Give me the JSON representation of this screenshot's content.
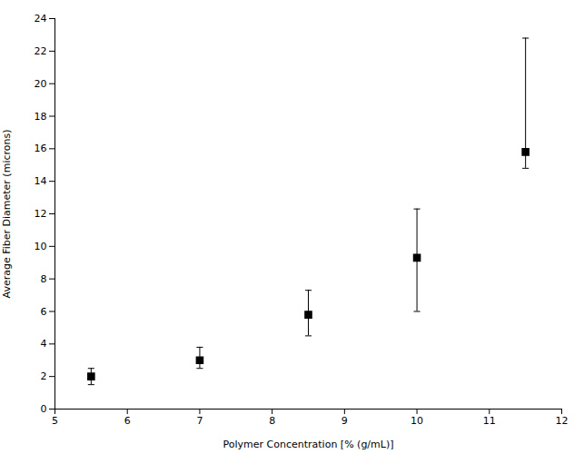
{
  "chart_data": {
    "type": "scatter",
    "xlabel": "Polymer Concentration [% (g/mL)]",
    "ylabel": "Average Fiber Diameter (microns)",
    "x": [
      5.5,
      7.0,
      8.5,
      10.0,
      11.5
    ],
    "values": [
      2.0,
      3.0,
      5.8,
      9.3,
      15.8
    ],
    "error_lower": [
      0.5,
      0.5,
      1.3,
      3.3,
      1.0
    ],
    "error_upper": [
      0.5,
      0.8,
      1.5,
      3.0,
      7.0
    ],
    "color": "black",
    "marker": "square",
    "xlim": [
      5,
      12
    ],
    "ylim": [
      0,
      24
    ],
    "xticks": [
      5,
      6,
      7,
      8,
      9,
      10,
      11,
      12
    ],
    "yticks": [
      0,
      2,
      4,
      6,
      8,
      10,
      12,
      14,
      16,
      18,
      20,
      22,
      24
    ],
    "grid": false
  }
}
